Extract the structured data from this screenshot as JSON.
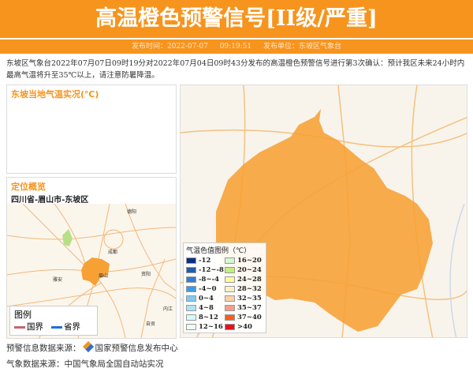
{
  "header": {
    "title": "高温橙色预警信号[II级/严重]",
    "publish_time": "发布时间：2022-07-07 09:19:51",
    "publish_unit": "发布单位：东坡区气象台",
    "accent": "#f7941d"
  },
  "description": "东坡区气象台2022年07月07日09时19分对2022年07月04日09时43分发布的高温橙色预警信号进行第3次确认：预计我区未来24小时内最高气温将升至35℃以上，请注意防暑降温。",
  "temp_panel": {
    "title": "东坡当地气温实况(℃)"
  },
  "location_panel": {
    "title": "定位概览",
    "location": "四川省-眉山市-东坡区",
    "map_labels": {
      "chengdu": "成都",
      "yaan": "雅安",
      "zigong": "自贡",
      "meishan": "眉山",
      "ziyang": "资阳",
      "neijiang": "内江",
      "deyang": "德阳"
    },
    "legend": {
      "title": "图例",
      "items": [
        {
          "label": "国界",
          "color": "#c9636e"
        },
        {
          "label": "省界",
          "color": "#1e6fd9"
        }
      ]
    }
  },
  "temp_legend": {
    "title": "气温色值图例（℃）",
    "items": [
      {
        "label": "-12",
        "color": "#0a2f85"
      },
      {
        "label": "16~20",
        "color": "#d5f7d0"
      },
      {
        "label": "-12~-8",
        "color": "#1f5fab"
      },
      {
        "label": "20~24",
        "color": "#c0f07d"
      },
      {
        "label": "-8~-4",
        "color": "#2f7fd6"
      },
      {
        "label": "24~28",
        "color": "#fffa9c"
      },
      {
        "label": "-4~0",
        "color": "#3c9ce8"
      },
      {
        "label": "28~32",
        "color": "#fff0c8"
      },
      {
        "label": "0~4",
        "color": "#7fcaf6"
      },
      {
        "label": "32~35",
        "color": "#fdd0a8"
      },
      {
        "label": "4~8",
        "color": "#aee4f5"
      },
      {
        "label": "35~37",
        "color": "#f99c8a"
      },
      {
        "label": "8~12",
        "color": "#d8f8fb"
      },
      {
        "label": "37~40",
        "color": "#fb5c1e"
      },
      {
        "label": "12~16",
        "color": "#f0fbee"
      },
      {
        "label": ">40",
        "color": "#e8101c"
      }
    ]
  },
  "footer": {
    "warning_source_label": "预警信息数据来源：",
    "warning_source": "国家预警信息发布中心",
    "weather_source": "气象数据来源：中国气象局全国自动站实况"
  }
}
